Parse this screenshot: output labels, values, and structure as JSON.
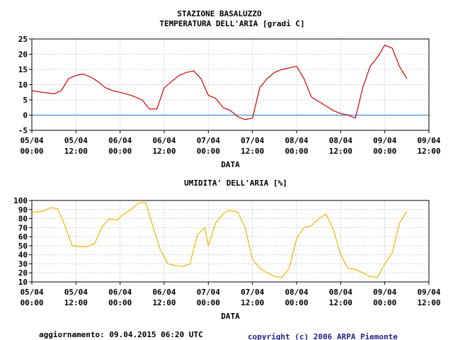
{
  "header": {
    "station": "STAZIONE BASALUZZO",
    "temp_title": "TEMPERATURA DELL'ARIA [gradi C]",
    "hum_title": "UMIDITA' DELL'ARIA [%]"
  },
  "footer": {
    "updated": "aggiornamento: 09.04.2015 06:20 UTC",
    "copyright": "copyright (c) 2006 ARPA Piemonte"
  },
  "colors": {
    "temperature_line": "#cc0000",
    "humidity_line": "#f0b400",
    "zero_line": "#1a7bd6",
    "grid": "#b8b8b8",
    "copyright_text": "#1f1f8f"
  },
  "chart_data": [
    {
      "type": "line",
      "title": "TEMPERATURA DELL'ARIA [gradi C]",
      "xlabel": "DATA",
      "x_ticks": [
        {
          "date": "05/04",
          "time": "00:00"
        },
        {
          "date": "05/04",
          "time": "12:00"
        },
        {
          "date": "06/04",
          "time": "00:00"
        },
        {
          "date": "06/04",
          "time": "12:00"
        },
        {
          "date": "07/04",
          "time": "00:00"
        },
        {
          "date": "07/04",
          "time": "12:00"
        },
        {
          "date": "08/04",
          "time": "00:00"
        },
        {
          "date": "08/04",
          "time": "12:00"
        },
        {
          "date": "09/04",
          "time": "00:00"
        },
        {
          "date": "09/04",
          "time": "12:00"
        }
      ],
      "x_unit": "hours",
      "xlim": [
        0,
        108
      ],
      "ylim": [
        -5,
        25
      ],
      "y_ticks": [
        -5,
        0,
        5,
        10,
        15,
        20,
        25
      ],
      "reference_line": 0,
      "grid": true,
      "series": [
        {
          "x": [
            0,
            3,
            6,
            8,
            10,
            12,
            14,
            16,
            18,
            20,
            22,
            24,
            27,
            30,
            32,
            34,
            36,
            38,
            40,
            42,
            44,
            46,
            48,
            50,
            52,
            54,
            55,
            56,
            58,
            60,
            62,
            64,
            66,
            68,
            70,
            72,
            74,
            76,
            78,
            80,
            82,
            84,
            86,
            88,
            90,
            92,
            94,
            96,
            98,
            100,
            102
          ],
          "y": [
            8,
            7.5,
            7,
            8,
            12,
            13,
            13.5,
            12.5,
            11,
            9,
            8,
            7.5,
            6.5,
            5,
            2,
            2,
            9,
            11,
            13,
            14,
            14.5,
            12,
            6.5,
            5.5,
            2.5,
            1.5,
            0.5,
            -0.5,
            -1.5,
            -1,
            9,
            12,
            14,
            15,
            15.5,
            16,
            12,
            6,
            4.5,
            3,
            1.5,
            0.5,
            0,
            -1,
            9,
            16,
            19,
            23,
            22,
            16,
            12
          ]
        }
      ]
    },
    {
      "type": "line",
      "title": "UMIDITA' DELL'ARIA [%]",
      "xlabel": "DATA",
      "x_ticks": [
        {
          "date": "05/04",
          "time": "00:00"
        },
        {
          "date": "05/04",
          "time": "12:00"
        },
        {
          "date": "06/04",
          "time": "00:00"
        },
        {
          "date": "06/04",
          "time": "12:00"
        },
        {
          "date": "07/04",
          "time": "00:00"
        },
        {
          "date": "07/04",
          "time": "12:00"
        },
        {
          "date": "08/04",
          "time": "00:00"
        },
        {
          "date": "08/04",
          "time": "12:00"
        },
        {
          "date": "09/04",
          "time": "00:00"
        },
        {
          "date": "09/04",
          "time": "12:00"
        }
      ],
      "x_unit": "hours",
      "xlim": [
        0,
        108
      ],
      "ylim": [
        10,
        100
      ],
      "y_ticks": [
        10,
        20,
        30,
        40,
        50,
        60,
        70,
        80,
        90,
        100
      ],
      "grid": true,
      "series": [
        {
          "x": [
            0,
            3,
            5,
            7,
            9,
            11,
            13,
            15,
            17,
            19,
            21,
            23,
            25,
            27,
            29,
            31,
            33,
            35,
            37,
            39,
            41,
            43,
            45,
            47,
            48,
            50,
            52,
            53,
            54,
            56,
            58,
            60,
            62,
            64,
            66,
            68,
            70,
            72,
            74,
            76,
            78,
            80,
            82,
            84,
            86,
            88,
            90,
            92,
            94,
            96,
            98,
            100,
            102
          ],
          "y": [
            87,
            88,
            92,
            91,
            72,
            50,
            49,
            49,
            52,
            70,
            80,
            78,
            85,
            90,
            97,
            98,
            70,
            45,
            30,
            28,
            27,
            30,
            62,
            70,
            50,
            75,
            85,
            88,
            89,
            87,
            70,
            35,
            25,
            20,
            16,
            15,
            25,
            58,
            70,
            72,
            80,
            85,
            68,
            40,
            25,
            24,
            20,
            16,
            15,
            30,
            42,
            75,
            88
          ]
        }
      ]
    }
  ]
}
